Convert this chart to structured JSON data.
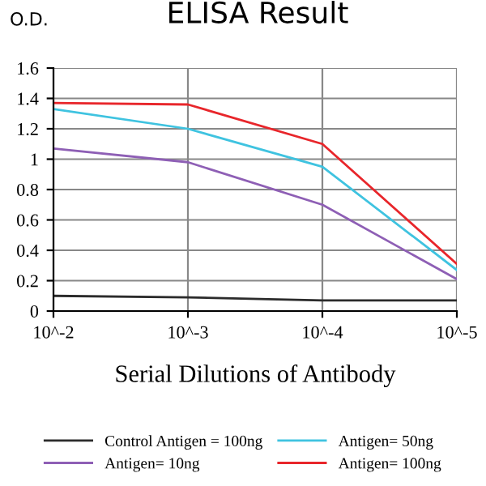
{
  "chart_data": {
    "type": "line",
    "title": "ELISA Result",
    "ylabel": "O.D.",
    "xlabel": "Serial Dilutions of Antibody",
    "categories": [
      "10^-2",
      "10^-3",
      "10^-4",
      "10^-5"
    ],
    "series": [
      {
        "name": "Control Antigen = 100ng",
        "color": "#2b2b2b",
        "values": [
          0.1,
          0.09,
          0.07,
          0.07
        ]
      },
      {
        "name": "Antigen= 10ng",
        "color": "#8e5fb5",
        "values": [
          1.07,
          0.98,
          0.7,
          0.21
        ]
      },
      {
        "name": "Antigen= 50ng",
        "color": "#3fc3e0",
        "values": [
          1.33,
          1.2,
          0.95,
          0.27
        ]
      },
      {
        "name": "Antigen= 100ng",
        "color": "#e8262b",
        "values": [
          1.37,
          1.36,
          1.1,
          0.31
        ]
      }
    ],
    "ylim": [
      0,
      1.6
    ],
    "yticks": [
      0,
      0.2,
      0.4,
      0.6,
      0.8,
      1,
      1.2,
      1.4,
      1.6
    ],
    "grid": true,
    "legend": "bottom",
    "marker": "none",
    "line_style": "solid"
  }
}
